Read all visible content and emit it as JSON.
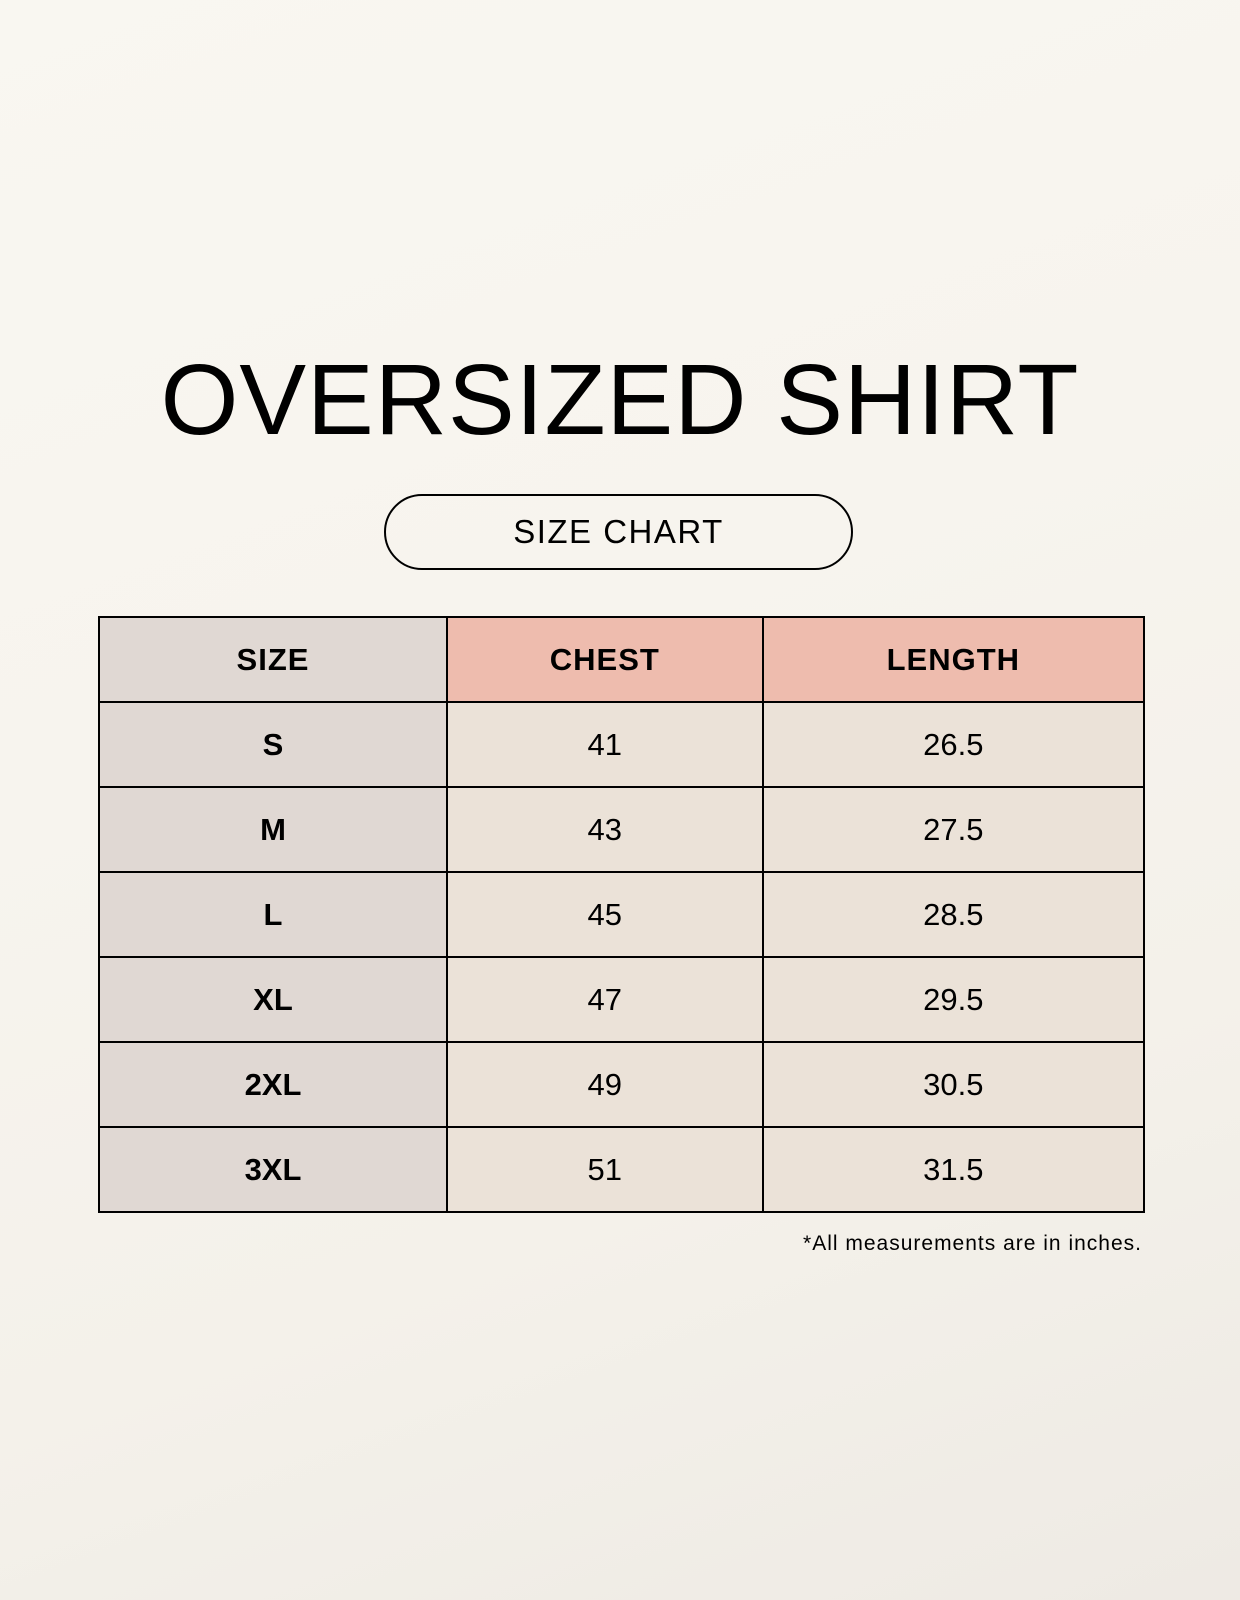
{
  "title": "OVERSIZED SHIRT",
  "subtitle": "SIZE CHART",
  "colors": {
    "size_column": "#e0d8d3",
    "header_accent": "#eebcae",
    "cell": "#ebe2d8"
  },
  "table": {
    "headers": [
      "SIZE",
      "CHEST",
      "LENGTH"
    ],
    "rows": [
      [
        "S",
        "41",
        "26.5"
      ],
      [
        "M",
        "43",
        "27.5"
      ],
      [
        "L",
        "45",
        "28.5"
      ],
      [
        "XL",
        "47",
        "29.5"
      ],
      [
        "2XL",
        "49",
        "30.5"
      ],
      [
        "3XL",
        "51",
        "31.5"
      ]
    ]
  },
  "note": "*All measurements are in inches."
}
